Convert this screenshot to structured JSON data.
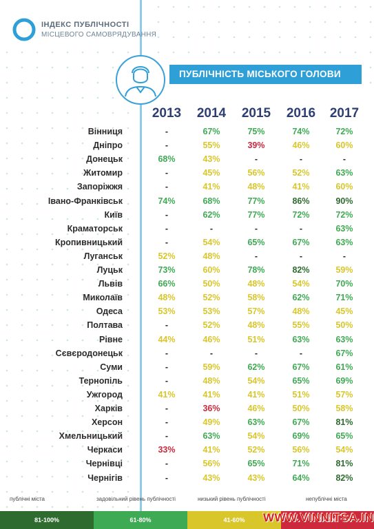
{
  "brand": {
    "line1": "ІНДЕКС ПУБЛІЧНОСТІ",
    "line2": "МІСЦЕВОГО САМОВРЯДУВАННЯ"
  },
  "banner_title": "ПУБЛІЧНІСТЬ МІСЬКОГО ГОЛОВИ",
  "colors": {
    "bright_green": "#3eaa53",
    "dark_green": "#2e6b2f",
    "yellow": "#d8c62a",
    "red": "#cc2a3c",
    "accent": "#2f9fd8"
  },
  "years": [
    "2013",
    "2014",
    "2015",
    "2016",
    "2017"
  ],
  "rows": [
    {
      "city": "Вінниця",
      "values": [
        "-",
        "67%",
        "75%",
        "74%",
        "72%"
      ]
    },
    {
      "city": "Дніпро",
      "values": [
        "-",
        "55%",
        "39%",
        "46%",
        "60%"
      ]
    },
    {
      "city": "Донецьк",
      "values": [
        "68%",
        "43%",
        "-",
        "-",
        "-"
      ]
    },
    {
      "city": "Житомир",
      "values": [
        "-",
        "45%",
        "56%",
        "52%",
        "63%"
      ]
    },
    {
      "city": "Запоріжжя",
      "values": [
        "-",
        "41%",
        "48%",
        "41%",
        "60%"
      ]
    },
    {
      "city": "Івано-Франківськ",
      "values": [
        "74%",
        "68%",
        "77%",
        "86%",
        "90%"
      ]
    },
    {
      "city": "Київ",
      "values": [
        "-",
        "62%",
        "77%",
        "72%",
        "72%"
      ]
    },
    {
      "city": "Краматорськ",
      "values": [
        "-",
        "-",
        "-",
        "-",
        "63%"
      ]
    },
    {
      "city": "Кропивницький",
      "values": [
        "-",
        "54%",
        "65%",
        "67%",
        "63%"
      ]
    },
    {
      "city": "Луганськ",
      "values": [
        "52%",
        "48%",
        "-",
        "-",
        "-"
      ]
    },
    {
      "city": "Луцьк",
      "values": [
        "73%",
        "60%",
        "78%",
        "82%",
        "59%"
      ]
    },
    {
      "city": "Львів",
      "values": [
        "66%",
        "50%",
        "48%",
        "54%",
        "70%"
      ]
    },
    {
      "city": "Миколаїв",
      "values": [
        "48%",
        "52%",
        "58%",
        "62%",
        "71%"
      ]
    },
    {
      "city": "Одеса",
      "values": [
        "53%",
        "53%",
        "57%",
        "48%",
        "45%"
      ]
    },
    {
      "city": "Полтава",
      "values": [
        "-",
        "52%",
        "48%",
        "55%",
        "50%"
      ]
    },
    {
      "city": "Рівне",
      "values": [
        "44%",
        "46%",
        "51%",
        "63%",
        "63%"
      ]
    },
    {
      "city": "Сєвєродонецьк",
      "values": [
        "-",
        "-",
        "-",
        "-",
        "67%"
      ]
    },
    {
      "city": "Суми",
      "values": [
        "-",
        "59%",
        "62%",
        "67%",
        "61%"
      ]
    },
    {
      "city": "Тернопіль",
      "values": [
        "-",
        "48%",
        "54%",
        "65%",
        "69%"
      ]
    },
    {
      "city": "Ужгород",
      "values": [
        "41%",
        "41%",
        "41%",
        "51%",
        "57%"
      ]
    },
    {
      "city": "Харків",
      "values": [
        "-",
        "36%",
        "46%",
        "50%",
        "58%"
      ]
    },
    {
      "city": "Херсон",
      "values": [
        "-",
        "49%",
        "63%",
        "67%",
        "81%"
      ]
    },
    {
      "city": "Хмельницький",
      "values": [
        "-",
        "63%",
        "54%",
        "69%",
        "65%"
      ]
    },
    {
      "city": "Черкаси",
      "values": [
        "33%",
        "41%",
        "52%",
        "56%",
        "54%"
      ]
    },
    {
      "city": "Чернівці",
      "values": [
        "-",
        "56%",
        "65%",
        "71%",
        "81%"
      ]
    },
    {
      "city": "Чернігів",
      "values": [
        "-",
        "43%",
        "43%",
        "64%",
        "82%"
      ]
    }
  ],
  "legend": [
    {
      "label": "публічні міста",
      "range": "81-100%"
    },
    {
      "label": "задовільний рівень публічності",
      "range": "61-80%"
    },
    {
      "label": "низький рівень публічності",
      "range": "41-60%"
    },
    {
      "label": "непублічні міста",
      "range": "0-40%"
    }
  ],
  "watermark": "WWW.VINNITSA.INFO"
}
